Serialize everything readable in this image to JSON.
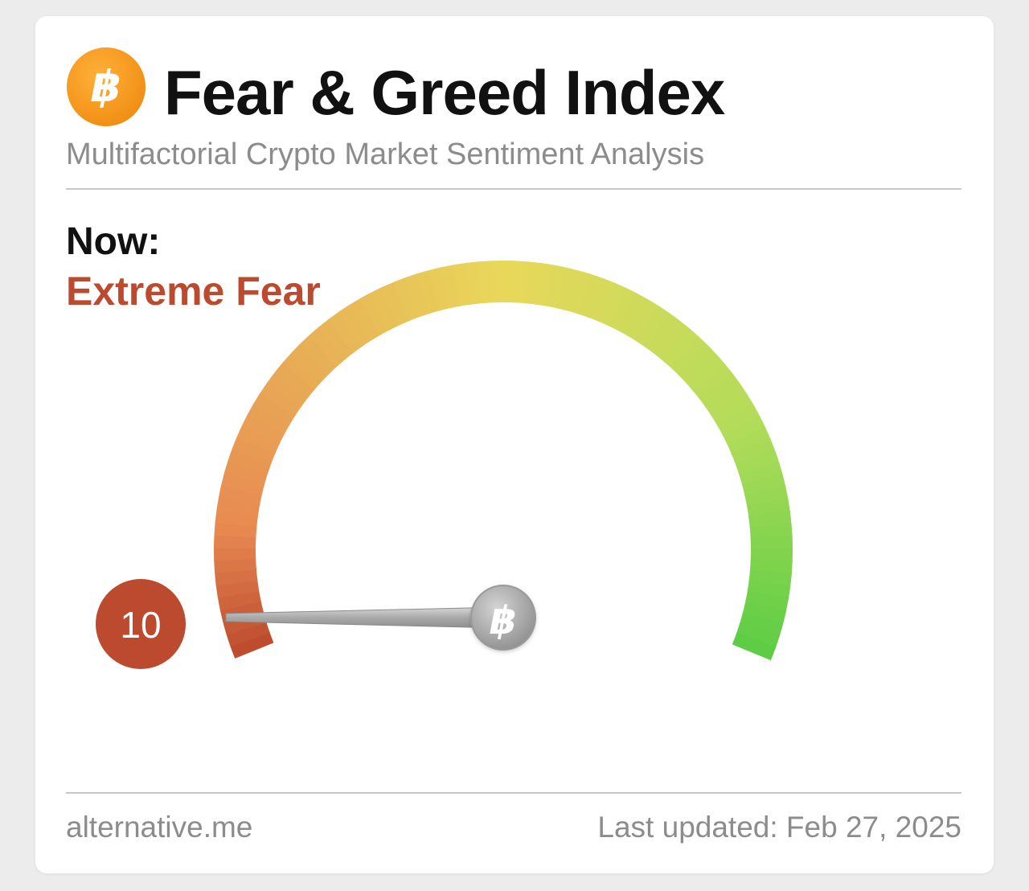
{
  "header": {
    "logo_icon": "bitcoin-icon",
    "logo_symbol": "฿",
    "title": "Fear & Greed Index",
    "subtitle": "Multifactorial Crypto Market Sentiment Analysis"
  },
  "current": {
    "label": "Now:",
    "status": "Extreme Fear",
    "value": "10",
    "score": 10,
    "scale_min": 0,
    "scale_max": 100
  },
  "gauge": {
    "needle_icon": "bitcoin-icon",
    "needle_symbol": "฿"
  },
  "footer": {
    "source": "alternative.me",
    "last_updated": "Last updated: Feb 27, 2025"
  },
  "colors": {
    "extreme_fear": "#bc4a2e",
    "fear": "#e88a52",
    "neutral": "#e8d85a",
    "greed": "#b2dc5a",
    "extreme_greed": "#5ccd44",
    "logo_orange": "#f7931a"
  }
}
